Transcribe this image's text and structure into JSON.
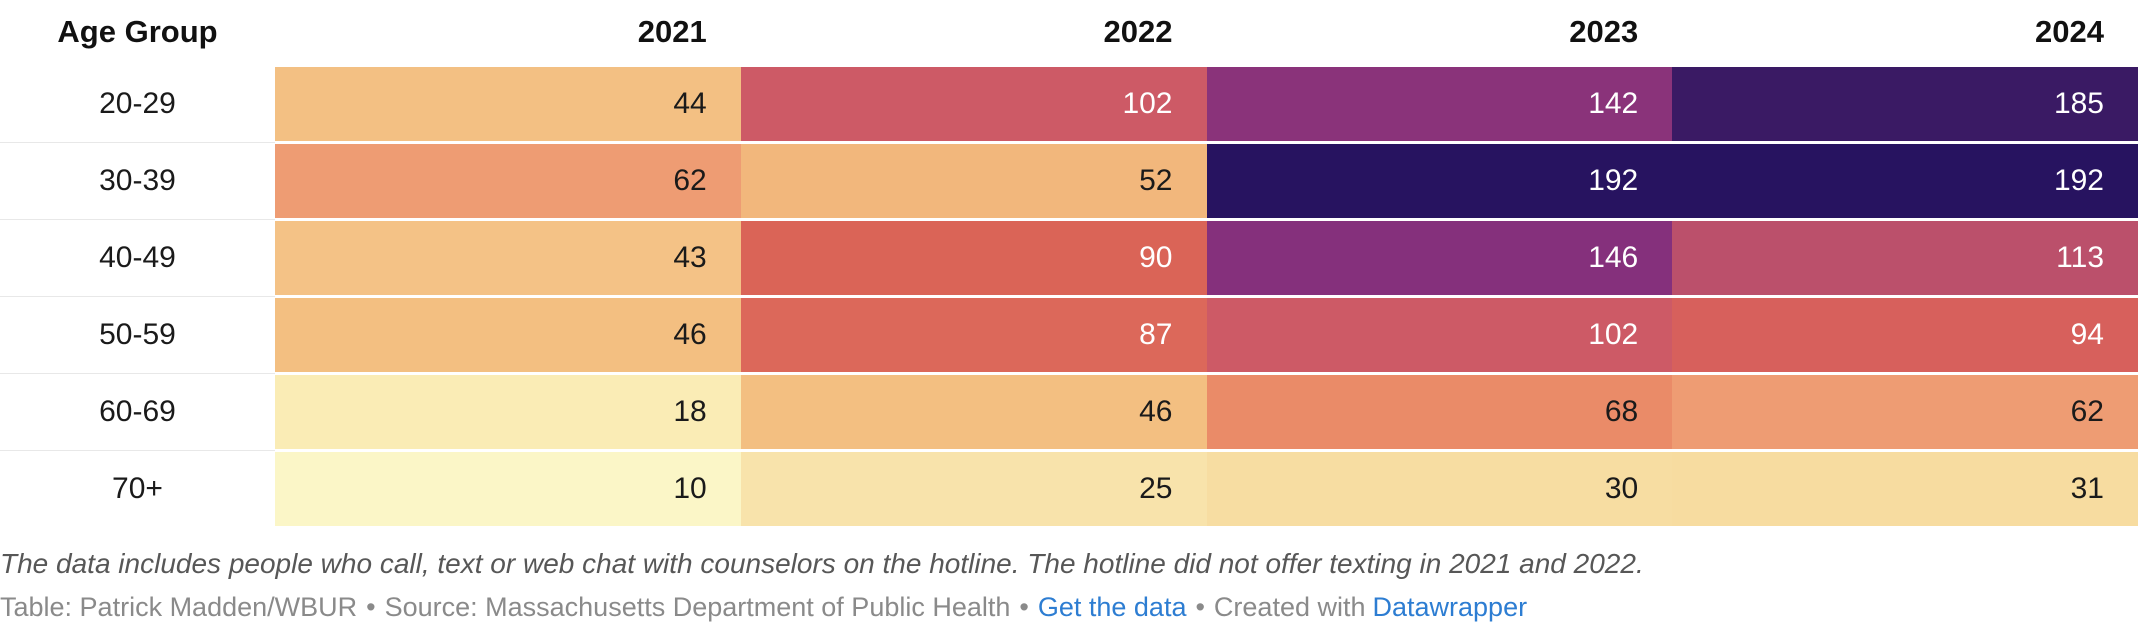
{
  "colors": {
    "link_blue": "#2d7dd2",
    "note_gray": "#575757",
    "byline_gray": "#8a8a8a",
    "text_dark": "#1a1a1a",
    "text_light": "#ffffff"
  },
  "table": {
    "header": {
      "row_label": "Age Group",
      "years": [
        "2021",
        "2022",
        "2023",
        "2024"
      ]
    },
    "rows": [
      {
        "label": "20-29",
        "cells": [
          {
            "v": "44",
            "bg": "#F3C083",
            "fg": "#1a1a1a"
          },
          {
            "v": "102",
            "bg": "#CD5A66",
            "fg": "#ffffff"
          },
          {
            "v": "142",
            "bg": "#8A337A",
            "fg": "#ffffff"
          },
          {
            "v": "185",
            "bg": "#3A1A64",
            "fg": "#ffffff"
          }
        ]
      },
      {
        "label": "30-39",
        "cells": [
          {
            "v": "62",
            "bg": "#EE9C73",
            "fg": "#1a1a1a"
          },
          {
            "v": "52",
            "bg": "#F2B77C",
            "fg": "#1a1a1a"
          },
          {
            "v": "192",
            "bg": "#271360",
            "fg": "#ffffff"
          },
          {
            "v": "192",
            "bg": "#271360",
            "fg": "#ffffff"
          }
        ]
      },
      {
        "label": "40-49",
        "cells": [
          {
            "v": "43",
            "bg": "#F4C286",
            "fg": "#1a1a1a"
          },
          {
            "v": "90",
            "bg": "#DA6457",
            "fg": "#ffffff"
          },
          {
            "v": "146",
            "bg": "#85307C",
            "fg": "#ffffff"
          },
          {
            "v": "113",
            "bg": "#BB506B",
            "fg": "#ffffff"
          }
        ]
      },
      {
        "label": "50-59",
        "cells": [
          {
            "v": "46",
            "bg": "#F3BF81",
            "fg": "#1a1a1a"
          },
          {
            "v": "87",
            "bg": "#DC685A",
            "fg": "#ffffff"
          },
          {
            "v": "102",
            "bg": "#CD5A66",
            "fg": "#ffffff"
          },
          {
            "v": "94",
            "bg": "#D7605C",
            "fg": "#ffffff"
          }
        ]
      },
      {
        "label": "60-69",
        "cells": [
          {
            "v": "18",
            "bg": "#FAECB5",
            "fg": "#1a1a1a"
          },
          {
            "v": "46",
            "bg": "#F3BF81",
            "fg": "#1a1a1a"
          },
          {
            "v": "68",
            "bg": "#EA8B68",
            "fg": "#1a1a1a"
          },
          {
            "v": "62",
            "bg": "#EE9C73",
            "fg": "#1a1a1a"
          }
        ]
      },
      {
        "label": "70+",
        "cells": [
          {
            "v": "10",
            "bg": "#FBF6C7",
            "fg": "#1a1a1a"
          },
          {
            "v": "25",
            "bg": "#F8E3AB",
            "fg": "#1a1a1a"
          },
          {
            "v": "30",
            "bg": "#F7DDA2",
            "fg": "#1a1a1a"
          },
          {
            "v": "31",
            "bg": "#F7DCA0",
            "fg": "#1a1a1a"
          }
        ]
      }
    ]
  },
  "footer": {
    "note": "The data includes people who call, text or web chat with counselors on the hotline. The hotline did not offer texting in 2021 and 2022.",
    "byline": {
      "table_credit": "Table: Patrick Madden/WBUR",
      "source": "Source: Massachusetts Department of Public Health",
      "separator": "•",
      "get_data_label": "Get the data",
      "created_with": "Created with",
      "datawrapper_label": "Datawrapper"
    }
  },
  "chart_data": {
    "type": "heatmap",
    "title": "",
    "row_header_label": "Age Group",
    "categories": [
      "20-29",
      "30-39",
      "40-49",
      "50-59",
      "60-69",
      "70+"
    ],
    "columns": [
      "2021",
      "2022",
      "2023",
      "2024"
    ],
    "series": [
      {
        "name": "2021",
        "values": [
          44,
          62,
          43,
          46,
          18,
          10
        ]
      },
      {
        "name": "2022",
        "values": [
          102,
          52,
          90,
          87,
          46,
          25
        ]
      },
      {
        "name": "2023",
        "values": [
          142,
          192,
          146,
          102,
          68,
          30
        ]
      },
      {
        "name": "2024",
        "values": [
          185,
          192,
          113,
          94,
          62,
          31
        ]
      }
    ],
    "value_range": [
      10,
      192
    ],
    "color_scale": "light-yellow to orange to red to dark-purple (magma reversed)",
    "note": "The data includes people who call, text or web chat with counselors on the hotline. The hotline did not offer texting in 2021 and 2022.",
    "byline": "Table: Patrick Madden/WBUR • Source: Massachusetts Department of Public Health • Get the data • Created with Datawrapper"
  }
}
